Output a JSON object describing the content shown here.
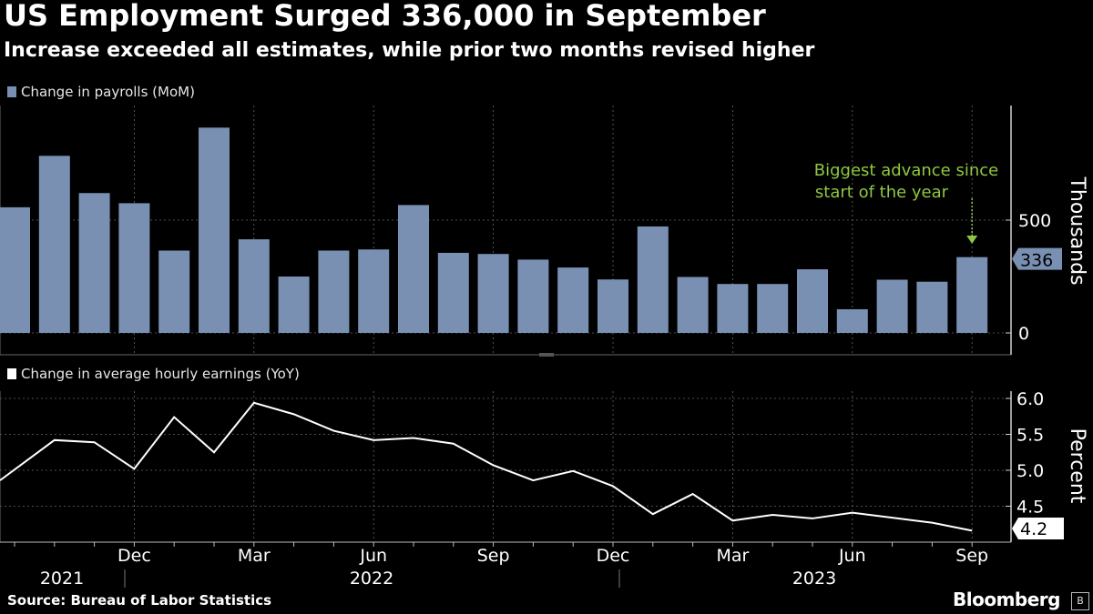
{
  "header": {
    "title": "US Employment Surged 336,000 in September",
    "subtitle": "Increase exceeded all estimates, while prior two months revised higher"
  },
  "footer": {
    "source": "Source: Bureau of Labor Statistics",
    "brand": "Bloomberg"
  },
  "colors": {
    "background": "#000000",
    "bar": "#7990b3",
    "line": "#ffffff",
    "annotation": "#8fc641",
    "grid": "#666666",
    "text": "#ffffff"
  },
  "icons": {
    "brand": "bloomberg-app-icon"
  },
  "chart_data": [
    {
      "type": "bar",
      "legend": "Change in payrolls (MoM)",
      "ylabel": "Thousands",
      "ylim": [
        -100,
        1000
      ],
      "yticks": [
        0,
        500
      ],
      "grid": true,
      "x_tick_labels": [
        "Dec",
        "Mar",
        "Jun",
        "Sep",
        "Dec",
        "Mar",
        "Jun",
        "Sep"
      ],
      "years": [
        "2021",
        "2022",
        "2023"
      ],
      "categories": [
        "2021-09",
        "2021-10",
        "2021-11",
        "2021-12",
        "2022-01",
        "2022-02",
        "2022-03",
        "2022-04",
        "2022-05",
        "2022-06",
        "2022-07",
        "2022-08",
        "2022-09",
        "2022-10",
        "2022-11",
        "2022-12",
        "2023-01",
        "2023-02",
        "2023-03",
        "2023-04",
        "2023-05",
        "2023-06",
        "2023-07",
        "2023-08",
        "2023-09"
      ],
      "values": [
        557,
        785,
        620,
        575,
        365,
        910,
        415,
        250,
        365,
        370,
        567,
        355,
        350,
        325,
        290,
        237,
        472,
        248,
        217,
        217,
        282,
        105,
        236,
        227,
        336
      ],
      "last_value_label": "336",
      "annotation": {
        "text_lines": [
          "Biggest advance since",
          "start of the year"
        ],
        "points_to": "2023-09"
      }
    },
    {
      "type": "line",
      "legend": "Change in average hourly earnings (YoY)",
      "ylabel": "Percent",
      "ylim": [
        4.0,
        6.1
      ],
      "yticks": [
        4.5,
        5.0,
        5.5,
        6.0
      ],
      "grid": true,
      "x": [
        "2021-09",
        "2021-10",
        "2021-11",
        "2021-12",
        "2022-01",
        "2022-02",
        "2022-03",
        "2022-04",
        "2022-05",
        "2022-06",
        "2022-07",
        "2022-08",
        "2022-09",
        "2022-10",
        "2022-11",
        "2022-12",
        "2023-01",
        "2023-02",
        "2023-03",
        "2023-04",
        "2023-05",
        "2023-06",
        "2023-07",
        "2023-08",
        "2023-09"
      ],
      "values": [
        4.86,
        5.42,
        5.39,
        5.02,
        5.74,
        5.25,
        5.94,
        5.78,
        5.55,
        5.42,
        5.45,
        5.37,
        5.07,
        4.86,
        4.99,
        4.78,
        4.39,
        4.67,
        4.3,
        4.38,
        4.33,
        4.41,
        4.34,
        4.27,
        4.16
      ],
      "last_value_label": "4.2"
    }
  ]
}
